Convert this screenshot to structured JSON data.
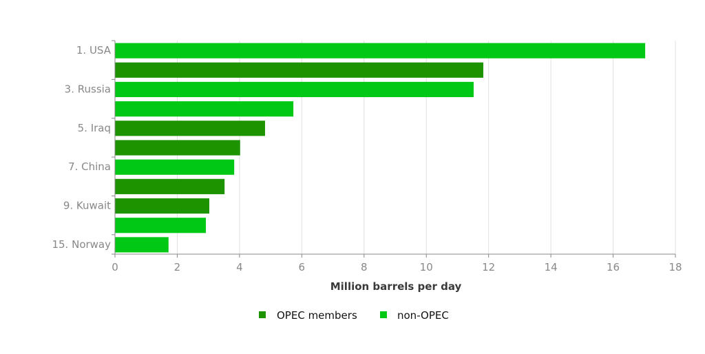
{
  "chart_data": {
    "type": "bar",
    "orientation": "horizontal",
    "categories": [
      "1. USA",
      "",
      "3. Russia",
      "",
      "5. Iraq",
      "",
      "7. China",
      "",
      "9. Kuwait",
      "",
      "15. Norway"
    ],
    "values": [
      17.03,
      11.83,
      11.52,
      5.73,
      4.82,
      4.02,
      3.83,
      3.52,
      3.03,
      2.92,
      1.72
    ],
    "groups": [
      "non-OPEC",
      "OPEC members",
      "non-OPEC",
      "non-OPEC",
      "OPEC members",
      "OPEC members",
      "non-OPEC",
      "OPEC members",
      "OPEC members",
      "non-OPEC",
      "non-OPEC"
    ],
    "xlabel": "Million barrels per day",
    "ylabel": "",
    "xlim": [
      0,
      18
    ],
    "xticks": [
      "0",
      "2",
      "4",
      "6",
      "8",
      "10",
      "12",
      "14",
      "16",
      "18"
    ],
    "grid": "vertical",
    "legend": {
      "placement": "bottom",
      "entries": [
        {
          "name": "OPEC members",
          "color": "#1d9300"
        },
        {
          "name": "non-OPEC",
          "color": "#00c814"
        }
      ]
    }
  }
}
